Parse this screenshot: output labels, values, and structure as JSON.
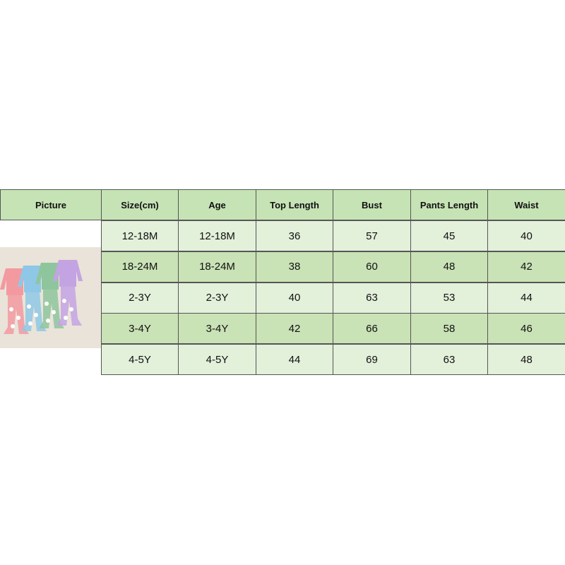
{
  "table": {
    "headers": [
      "Picture",
      "Size(cm)",
      "Age",
      "Top Length",
      "Bust",
      "Pants Length",
      "Waist"
    ],
    "rows": [
      [
        "12-18M",
        "12-18M",
        "36",
        "57",
        "45",
        "40"
      ],
      [
        "18-24M",
        "18-24M",
        "38",
        "60",
        "48",
        "42"
      ],
      [
        "2-3Y",
        "2-3Y",
        "40",
        "63",
        "53",
        "44"
      ],
      [
        "3-4Y",
        "3-4Y",
        "42",
        "66",
        "58",
        "46"
      ],
      [
        "4-5Y",
        "4-5Y",
        "44",
        "69",
        "63",
        "48"
      ]
    ]
  },
  "picture": {
    "outfit_colors": [
      "#f29a9f",
      "#8fc8e6",
      "#8fc59c",
      "#c4a3e3"
    ],
    "background": "#e9e3d9"
  },
  "colors": {
    "header": "#c6e3b5",
    "row_light": "#e3f0da",
    "row_dark": "#c9e2b6"
  }
}
